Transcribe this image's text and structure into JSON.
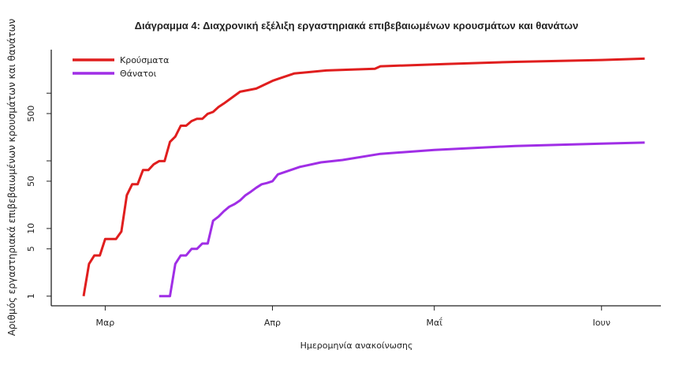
{
  "chart_data": {
    "type": "line",
    "title": "Διάγραμμα 4: Διαχρονική εξέλιξη εργαστηριακά επιβεβαιωμένων κρουσμάτων και θανάτων",
    "xlabel": "Ημερομηνία ανακοίνωσης",
    "ylabel": "Αριθμός εργαστηριακά επιβεβαιωμένων κρουσμάτων και θανάτων",
    "y_scale": "log",
    "ylim": [
      0.72,
      4400
    ],
    "xlim": [
      "2020-02-20",
      "2020-06-12"
    ],
    "y_ticks": [
      1,
      5,
      10,
      50,
      100,
      500,
      1000
    ],
    "y_tick_labels": [
      "1",
      "5",
      "10",
      "50",
      "",
      "500",
      ""
    ],
    "x_ticks": [
      "2020-03-01",
      "2020-04-01",
      "2020-05-01",
      "2020-06-01"
    ],
    "x_tick_labels": [
      "Μαρ",
      "Απρ",
      "Μαΐ",
      "Ιουν"
    ],
    "grid": false,
    "legend_position": "top-left",
    "series": [
      {
        "name": "Κρούσματα",
        "color": "#e01e1e",
        "points": [
          [
            "2020-02-26",
            1
          ],
          [
            "2020-02-27",
            3
          ],
          [
            "2020-02-28",
            4
          ],
          [
            "2020-02-29",
            4
          ],
          [
            "2020-03-01",
            7
          ],
          [
            "2020-03-03",
            7
          ],
          [
            "2020-03-04",
            9
          ],
          [
            "2020-03-05",
            31
          ],
          [
            "2020-03-06",
            45
          ],
          [
            "2020-03-07",
            45
          ],
          [
            "2020-03-08",
            73
          ],
          [
            "2020-03-09",
            73
          ],
          [
            "2020-03-10",
            89
          ],
          [
            "2020-03-11",
            99
          ],
          [
            "2020-03-12",
            99
          ],
          [
            "2020-03-13",
            190
          ],
          [
            "2020-03-14",
            228
          ],
          [
            "2020-03-15",
            331
          ],
          [
            "2020-03-16",
            331
          ],
          [
            "2020-03-17",
            387
          ],
          [
            "2020-03-18",
            418
          ],
          [
            "2020-03-19",
            418
          ],
          [
            "2020-03-20",
            495
          ],
          [
            "2020-03-21",
            528
          ],
          [
            "2020-03-22",
            625
          ],
          [
            "2020-03-23",
            705
          ],
          [
            "2020-03-26",
            1050
          ],
          [
            "2020-03-29",
            1170
          ],
          [
            "2020-04-01",
            1520
          ],
          [
            "2020-04-02",
            1620
          ],
          [
            "2020-04-05",
            1950
          ],
          [
            "2020-04-11",
            2170
          ],
          [
            "2020-04-20",
            2300
          ],
          [
            "2020-04-21",
            2500
          ],
          [
            "2020-05-03",
            2700
          ],
          [
            "2020-05-16",
            2900
          ],
          [
            "2020-06-01",
            3100
          ],
          [
            "2020-06-09",
            3240
          ]
        ]
      },
      {
        "name": "Θάνατοι",
        "color": "#a02ee6",
        "points": [
          [
            "2020-03-11",
            1
          ],
          [
            "2020-03-13",
            1
          ],
          [
            "2020-03-14",
            3
          ],
          [
            "2020-03-15",
            4
          ],
          [
            "2020-03-16",
            4
          ],
          [
            "2020-03-17",
            5
          ],
          [
            "2020-03-18",
            5
          ],
          [
            "2020-03-19",
            6
          ],
          [
            "2020-03-20",
            6
          ],
          [
            "2020-03-21",
            13
          ],
          [
            "2020-03-22",
            15
          ],
          [
            "2020-03-23",
            18
          ],
          [
            "2020-03-24",
            21
          ],
          [
            "2020-03-25",
            23
          ],
          [
            "2020-03-26",
            26
          ],
          [
            "2020-03-27",
            31
          ],
          [
            "2020-03-28",
            35
          ],
          [
            "2020-03-29",
            40
          ],
          [
            "2020-03-30",
            45
          ],
          [
            "2020-03-31",
            47
          ],
          [
            "2020-04-01",
            50
          ],
          [
            "2020-04-02",
            63
          ],
          [
            "2020-04-06",
            81
          ],
          [
            "2020-04-10",
            95
          ],
          [
            "2020-04-14",
            103
          ],
          [
            "2020-04-21",
            127
          ],
          [
            "2020-05-01",
            145
          ],
          [
            "2020-05-16",
            166
          ],
          [
            "2020-06-01",
            180
          ],
          [
            "2020-06-09",
            186
          ]
        ]
      }
    ]
  }
}
